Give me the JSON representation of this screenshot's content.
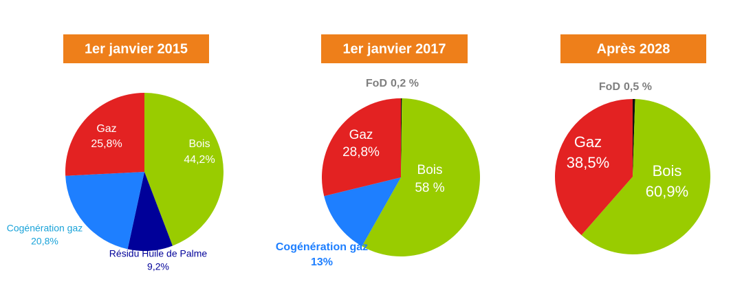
{
  "chart_data": [
    {
      "type": "pie",
      "title": "1er janvier 2015",
      "categories": [
        "Bois",
        "Résidu Huile de Palme",
        "Cogénération gaz",
        "Gaz"
      ],
      "values": [
        44.2,
        9.2,
        20.8,
        25.8
      ],
      "value_labels": [
        "44,2%",
        "9,2%",
        "20,8%",
        "25,8%"
      ],
      "colors": [
        "#99cc00",
        "#000099",
        "#1e7fff",
        "#e32222"
      ]
    },
    {
      "type": "pie",
      "title": "1er janvier 2017",
      "categories": [
        "FoD",
        "Bois",
        "Cogénération gaz",
        "Gaz"
      ],
      "values": [
        0.2,
        58,
        13,
        28.8
      ],
      "value_labels": [
        "0,2 %",
        "58 %",
        "13%",
        "28,8%"
      ],
      "colors": [
        "#111111",
        "#99cc00",
        "#1e7fff",
        "#e32222"
      ]
    },
    {
      "type": "pie",
      "title": "Après 2028",
      "categories": [
        "FoD",
        "Bois",
        "Gaz"
      ],
      "values": [
        0.5,
        60.9,
        38.5
      ],
      "value_labels": [
        "0,5 %",
        "60,9%",
        "38,5%"
      ],
      "colors": [
        "#111111",
        "#99cc00",
        "#e32222"
      ]
    }
  ]
}
